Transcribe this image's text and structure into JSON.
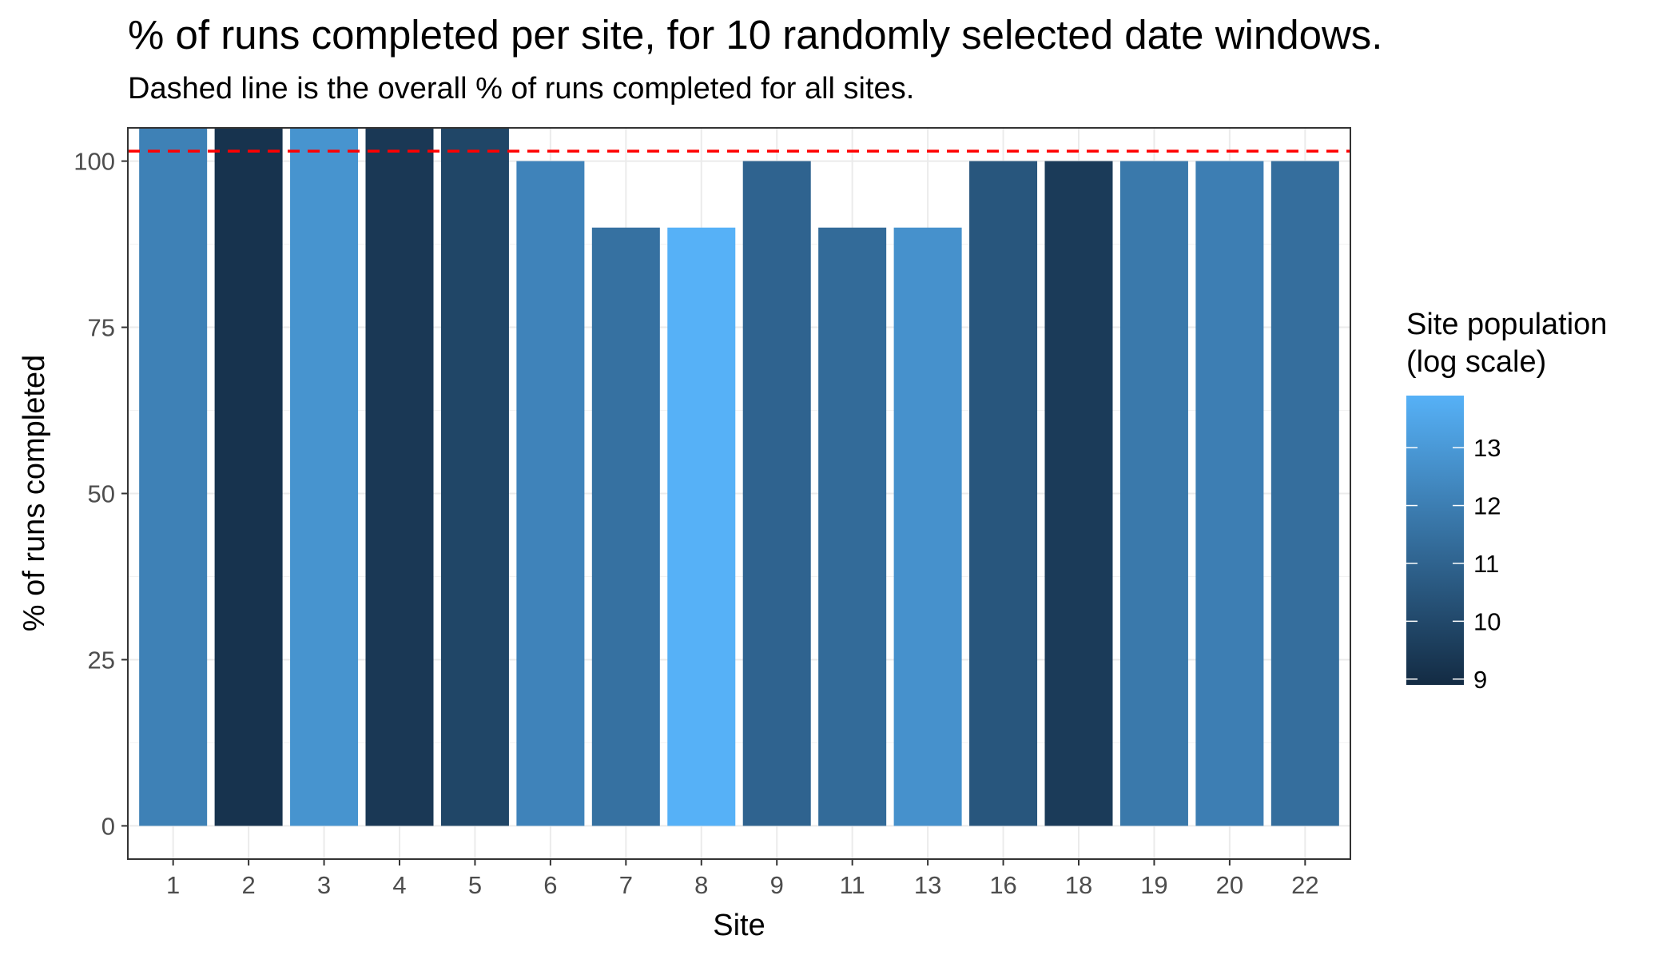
{
  "chart_data": {
    "type": "bar",
    "title": "% of runs completed per site, for 10 randomly selected date windows.",
    "subtitle": "Dashed line is the overall % of runs completed for all sites.",
    "xlabel": "Site",
    "ylabel": "% of runs completed",
    "categories": [
      "1",
      "2",
      "3",
      "4",
      "5",
      "6",
      "7",
      "8",
      "9",
      "11",
      "13",
      "16",
      "18",
      "19",
      "20",
      "22"
    ],
    "values": [
      110,
      110,
      110,
      110,
      110,
      100,
      90,
      90,
      100,
      90,
      90,
      100,
      100,
      100,
      100,
      100
    ],
    "fill_values": [
      12.1,
      9.2,
      12.8,
      9.4,
      9.9,
      12.2,
      11.5,
      13.9,
      11.0,
      11.3,
      12.7,
      10.5,
      9.5,
      11.8,
      12.0,
      11.4
    ],
    "ylim": [
      -5,
      105
    ],
    "yticks": [
      0,
      25,
      50,
      75,
      100
    ],
    "reference_line": {
      "value": 101.5,
      "style": "dashed",
      "color": "#ff0000"
    },
    "legend": {
      "title_lines": [
        "Site population",
        "(log scale)"
      ],
      "position": "right",
      "breaks": [
        9,
        10,
        11,
        12,
        13
      ],
      "range": [
        8.9,
        13.9
      ],
      "color_low": "#132B43",
      "color_high": "#56B1F7"
    },
    "grid": true,
    "theme": "bw"
  }
}
